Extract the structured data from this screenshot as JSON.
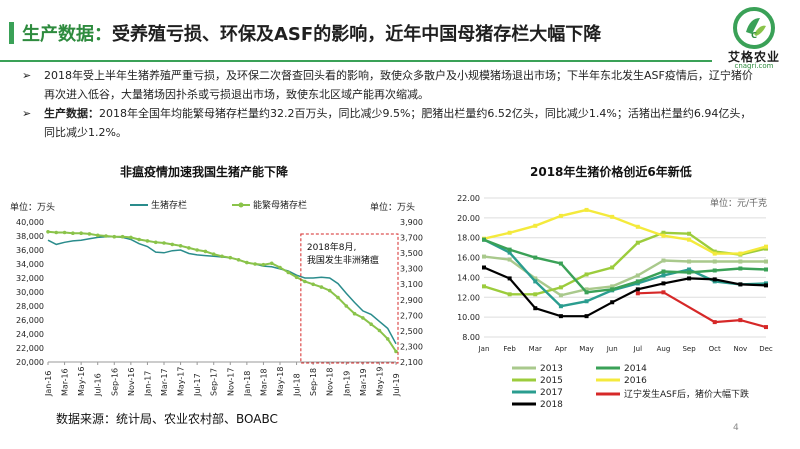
{
  "header": {
    "title_prefix": "生产数据：",
    "title_rest": "受养殖亏损、环保及ASF的影响，近年中国母猪存栏大幅下降"
  },
  "logo": {
    "mark": "C",
    "name_cn": "艾格农业",
    "url": "cnagri.com",
    "brand_color": "#3aa157"
  },
  "bullets": [
    {
      "mark": "➢",
      "bold": "",
      "text": "2018年受上半年生猪养殖严重亏损，及环保二次督查回头看的影响，致使众多散户及小规模猪场退出市场；下半年东北发生ASF疫情后，辽宁猪价再次进入低谷，大量猪场因扑杀或亏损退出市场，致使东北区域产能再次缩减。"
    },
    {
      "mark": "➢",
      "bold": "生产数据：",
      "text": "2018年全国年均能繁母猪存栏量约32.2百万头，同比减少9.5%；肥猪出栏量约6.52亿头，同比减少1.4%；活猪出栏量约6.94亿头，同比减少1.2%。"
    }
  ],
  "source": "数据来源：统计局、农业农村部、BOABC",
  "page_number": "4",
  "chart_data": [
    {
      "type": "line",
      "title": "非瘟疫情加速我国生猪产能下降",
      "left_unit_label": "单位：万头",
      "right_unit_label": "单位：万头",
      "x": [
        "Jan-16",
        "Feb-16",
        "Mar-16",
        "Apr-16",
        "May-16",
        "Jun-16",
        "Jul-16",
        "Aug-16",
        "Sep-16",
        "Oct-16",
        "Nov-16",
        "Dec-16",
        "Jan-17",
        "Feb-17",
        "Mar-17",
        "Apr-17",
        "May-17",
        "Jun-17",
        "Jul-17",
        "Aug-17",
        "Sep-17",
        "Oct-17",
        "Nov-17",
        "Dec-17",
        "Jan-18",
        "Feb-18",
        "Mar-18",
        "Apr-18",
        "May-18",
        "Jun-18",
        "Jul-18",
        "Aug-18",
        "Sep-18",
        "Oct-18",
        "Nov-18",
        "Dec-18",
        "Jan-19",
        "Feb-19",
        "Mar-19",
        "Apr-19",
        "May-19",
        "Jun-19",
        "Jul-19"
      ],
      "x_tick_labels": [
        "Jan-16",
        "Mar-16",
        "May-16",
        "Jul-16",
        "Sep-16",
        "Nov-16",
        "Jan-17",
        "Mar-17",
        "May-17",
        "Jul-17",
        "Sep-17",
        "Nov-17",
        "Jan-18",
        "Mar-18",
        "May-18",
        "Jul-18",
        "Sep-18",
        "Nov-18",
        "Jan-19",
        "Mar-19",
        "May-19",
        "Jul-19"
      ],
      "left_axis": {
        "min": 20000,
        "max": 40000,
        "ticks": [
          "20,000",
          "22,000",
          "24,000",
          "26,000",
          "28,000",
          "30,000",
          "32,000",
          "34,000",
          "36,000",
          "38,000",
          "40,000"
        ]
      },
      "right_axis": {
        "min": 2100,
        "max": 3900,
        "ticks": [
          "2,100",
          "2,300",
          "2,500",
          "2,700",
          "2,900",
          "3,100",
          "3,300",
          "3,500",
          "3,700",
          "3,900"
        ]
      },
      "series": [
        {
          "name": "生猪存栏",
          "axis": "left",
          "color": "#2a8c8c",
          "values": [
            37400,
            36800,
            37100,
            37300,
            37400,
            37600,
            37800,
            37900,
            37900,
            37800,
            37500,
            36900,
            36500,
            35700,
            35600,
            35900,
            36000,
            35500,
            35300,
            35200,
            35100,
            35000,
            34900,
            34600,
            34200,
            34000,
            33700,
            33600,
            33300,
            33000,
            32400,
            32000,
            32000,
            32100,
            32000,
            31200,
            29800,
            28500,
            27300,
            26800,
            25800,
            24800,
            22600
          ]
        },
        {
          "name": "能繁母猪存栏",
          "axis": "left",
          "color": "#8ac34a",
          "values": [
            38600,
            38500,
            38500,
            38400,
            38400,
            38300,
            38100,
            38000,
            37900,
            37900,
            37800,
            37500,
            37300,
            37100,
            37000,
            36800,
            36600,
            36300,
            36000,
            35800,
            35400,
            35100,
            34900,
            34600,
            34200,
            34000,
            33900,
            34100,
            33500,
            32800,
            32100,
            31500,
            31100,
            30700,
            30200,
            29200,
            28000,
            26900,
            26300,
            25400,
            24500,
            23300,
            21500
          ]
        }
      ],
      "annotation": {
        "line1": "2018年8月,",
        "line2": "我国发生非洲猪瘟"
      }
    },
    {
      "type": "line",
      "title": "2018年生猪价格创近6年新低",
      "unit_label": "单位：元/千克",
      "categories": [
        "Jan",
        "Feb",
        "Mar",
        "Apr",
        "May",
        "Jun",
        "Jul",
        "Aug",
        "Sep",
        "Oct",
        "Nov",
        "Dec"
      ],
      "y_axis": {
        "min": 8.0,
        "max": 22.0,
        "ticks": [
          "8.00",
          "10.00",
          "12.00",
          "14.00",
          "16.00",
          "18.00",
          "20.00",
          "22.00"
        ]
      },
      "series": [
        {
          "name": "2013",
          "color": "#a9c98c",
          "values": [
            16.1,
            15.8,
            13.9,
            12.2,
            12.8,
            13.1,
            14.2,
            15.7,
            15.6,
            15.6,
            15.6,
            15.6
          ]
        },
        {
          "name": "2014",
          "color": "#3aa157",
          "values": [
            17.8,
            16.8,
            16.0,
            15.4,
            12.5,
            12.8,
            13.6,
            14.6,
            14.5,
            14.7,
            14.9,
            14.8
          ]
        },
        {
          "name": "2015",
          "color": "#9ccc3c",
          "values": [
            13.1,
            12.3,
            12.3,
            13.0,
            14.3,
            15.0,
            17.5,
            18.5,
            18.4,
            16.6,
            16.3,
            16.9
          ]
        },
        {
          "name": "2016",
          "color": "#f4ea3c",
          "values": [
            17.9,
            18.5,
            19.2,
            20.2,
            20.8,
            20.1,
            19.1,
            18.2,
            17.8,
            16.4,
            16.4,
            17.1
          ]
        },
        {
          "name": "2017",
          "color": "#2a9d8f",
          "values": [
            17.8,
            16.5,
            13.6,
            11.1,
            11.6,
            12.7,
            13.4,
            14.2,
            14.8,
            13.6,
            13.3,
            13.4
          ]
        },
        {
          "name": "2018",
          "color": "#000000",
          "values": [
            15.0,
            13.9,
            10.9,
            10.1,
            10.1,
            11.5,
            12.8,
            13.4,
            13.9,
            13.8,
            13.3,
            13.2
          ]
        },
        {
          "name": "辽宁发生ASF后，猪价大幅下跌",
          "color": "#d62828",
          "values": [
            null,
            null,
            null,
            null,
            null,
            null,
            12.4,
            12.5,
            null,
            9.5,
            9.7,
            9.0
          ]
        }
      ]
    }
  ]
}
